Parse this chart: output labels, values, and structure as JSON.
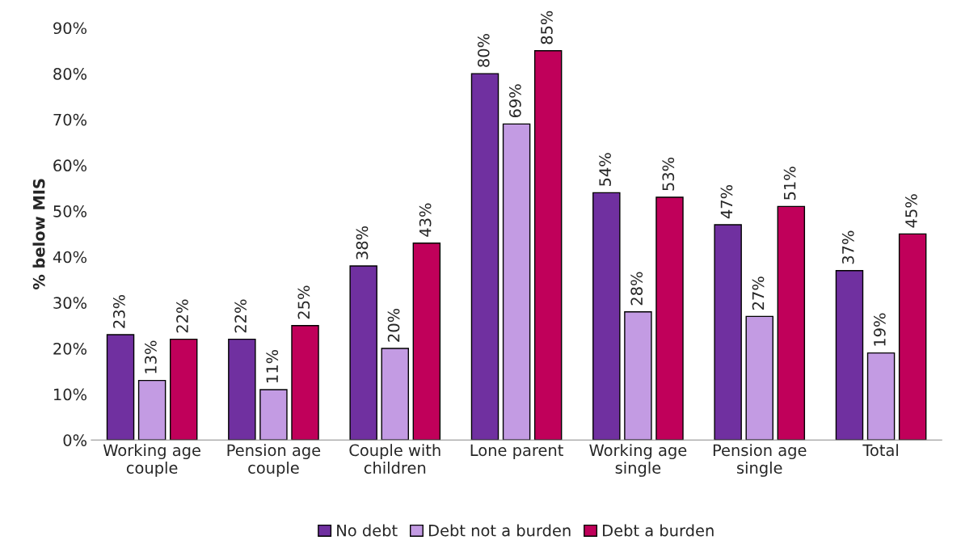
{
  "chart_data": {
    "type": "bar",
    "ylabel": "% below MIS",
    "categories": [
      "Working age couple",
      "Pension age couple",
      "Couple with children",
      "Lone parent",
      "Working age single",
      "Pension age single",
      "Total"
    ],
    "series": [
      {
        "name": "No debt",
        "color": "#7030a0",
        "values": [
          23,
          22,
          38,
          80,
          54,
          47,
          37
        ],
        "value_labels": [
          "23%",
          "22%",
          "38%",
          "80%",
          "54%",
          "47%",
          "37%"
        ]
      },
      {
        "name": "Debt not a burden",
        "color": "#c39be3",
        "values": [
          13,
          11,
          20,
          69,
          28,
          27,
          19
        ],
        "value_labels": [
          "13%",
          "11%",
          "20%",
          "69%",
          "28%",
          "27%",
          "19%"
        ]
      },
      {
        "name": "Debt a burden",
        "color": "#c0005a",
        "values": [
          22,
          25,
          43,
          85,
          53,
          51,
          45
        ],
        "value_labels": [
          "22%",
          "25%",
          "43%",
          "85%",
          "53%",
          "51%",
          "45%"
        ]
      }
    ],
    "ylim": [
      0,
      90
    ],
    "yticks": [
      {
        "value": 0,
        "label": "0%"
      },
      {
        "value": 10,
        "label": "10%"
      },
      {
        "value": 20,
        "label": "20%"
      },
      {
        "value": 30,
        "label": "30%"
      },
      {
        "value": 40,
        "label": "40%"
      },
      {
        "value": 50,
        "label": "50%"
      },
      {
        "value": 60,
        "label": "60%"
      },
      {
        "value": 70,
        "label": "70%"
      },
      {
        "value": 80,
        "label": "80%"
      },
      {
        "value": 90,
        "label": "90%"
      }
    ],
    "grid": false,
    "legend": "bottom"
  }
}
